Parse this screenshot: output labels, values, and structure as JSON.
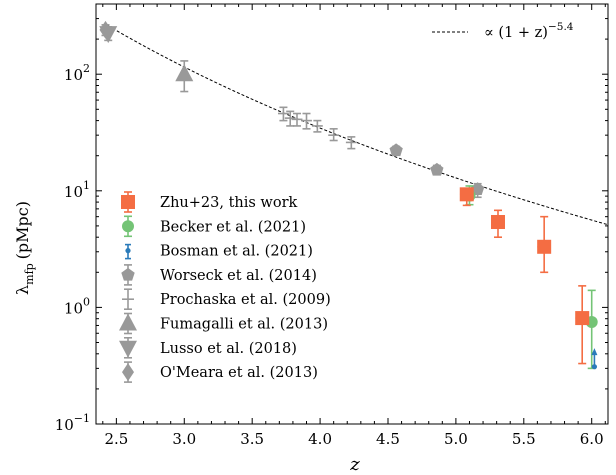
{
  "chart_data": {
    "type": "scatter",
    "xlabel": "z",
    "ylabel_main": "λ",
    "ylabel_sub": "mfp",
    "ylabel_unit": "(pMpc)",
    "xlim": [
      2.35,
      6.12
    ],
    "ylim": [
      0.1,
      400
    ],
    "yscale": "log",
    "x_ticks": [
      2.5,
      3.0,
      3.5,
      4.0,
      4.5,
      5.0,
      5.5,
      6.0
    ],
    "x_tick_labels": [
      "2.5",
      "3.0",
      "3.5",
      "4.0",
      "4.5",
      "5.0",
      "5.5",
      "6.0"
    ],
    "y_ticks": [
      {
        "value": 0.1,
        "base": "10",
        "exp": "−1"
      },
      {
        "value": 1,
        "base": "10",
        "exp": "0"
      },
      {
        "value": 10,
        "base": "10",
        "exp": "1"
      },
      {
        "value": 100,
        "base": "10",
        "exp": "2"
      }
    ],
    "grid": false,
    "legend_position": "lower-left",
    "fit_line": {
      "label": "∝ (1 + z)",
      "label_exp": "−5.4",
      "exponent": -5.4,
      "norm_z": 2.44,
      "norm_value": 260,
      "x_start": 2.44,
      "x_end": 6.12,
      "color": "#000000"
    },
    "series": [
      {
        "name": "Zhu+23, this work",
        "marker": "square",
        "color": "#f46d43",
        "points": [
          {
            "x": 5.08,
            "y": 9.33,
            "yerr_low": 7.5,
            "yerr_high": 10.5,
            "xerr": 0.05
          },
          {
            "x": 5.31,
            "y": 5.4,
            "yerr_low": 4.0,
            "yerr_high": 6.8,
            "xerr": 0.05
          },
          {
            "x": 5.65,
            "y": 3.31,
            "yerr_low": 2.0,
            "yerr_high": 6.0,
            "xerr": 0.05
          },
          {
            "x": 5.93,
            "y": 0.81,
            "yerr_low": 0.33,
            "yerr_high": 1.53,
            "xerr": 0.05
          }
        ]
      },
      {
        "name": "Becker et al. (2021)",
        "marker": "circle",
        "color": "#74c476",
        "points": [
          {
            "x": 5.1,
            "y": 9.09,
            "yerr_low": 7.6,
            "yerr_high": 11.0,
            "xerr": 0
          },
          {
            "x": 6.0,
            "y": 0.75,
            "yerr_low": 0.3,
            "yerr_high": 1.4,
            "xerr": 0
          }
        ]
      },
      {
        "name": "Bosman et al. (2021)",
        "marker": "small-circle",
        "color": "#2b7bba",
        "points": [
          {
            "x": 6.02,
            "y": 0.31,
            "yerr_low": 0.31,
            "yerr_high": 0.43,
            "xerr": 0,
            "lower_limit": true
          }
        ]
      },
      {
        "name": "Worseck et al. (2014)",
        "marker": "pentagon",
        "color": "#999999",
        "points": [
          {
            "x": 4.56,
            "y": 22.2,
            "yerr_low": 20.5,
            "yerr_high": 24.0,
            "xerr": 0
          },
          {
            "x": 4.86,
            "y": 15.1,
            "yerr_low": 13.8,
            "yerr_high": 16.5,
            "xerr": 0
          },
          {
            "x": 5.16,
            "y": 10.3,
            "yerr_low": 8.8,
            "yerr_high": 11.5,
            "xerr": 0
          }
        ]
      },
      {
        "name": "Prochaska et al. (2009)",
        "marker": "plus",
        "color": "#999999",
        "points": [
          {
            "x": 3.73,
            "y": 46,
            "yerr_low": 40,
            "yerr_high": 52,
            "xerr": 0.04
          },
          {
            "x": 3.78,
            "y": 42,
            "yerr_low": 36,
            "yerr_high": 48,
            "xerr": 0.04
          },
          {
            "x": 3.83,
            "y": 41,
            "yerr_low": 36,
            "yerr_high": 46,
            "xerr": 0.04
          },
          {
            "x": 3.9,
            "y": 40,
            "yerr_low": 34,
            "yerr_high": 46,
            "xerr": 0.04
          },
          {
            "x": 3.98,
            "y": 36,
            "yerr_low": 32,
            "yerr_high": 40,
            "xerr": 0.04
          },
          {
            "x": 4.1,
            "y": 30,
            "yerr_low": 27,
            "yerr_high": 34,
            "xerr": 0.04
          },
          {
            "x": 4.23,
            "y": 26,
            "yerr_low": 23,
            "yerr_high": 29,
            "xerr": 0.04
          }
        ]
      },
      {
        "name": "Fumagalli et al. (2013)",
        "marker": "triangle-up",
        "color": "#999999",
        "points": [
          {
            "x": 3.0,
            "y": 100,
            "yerr_low": 71,
            "yerr_high": 130,
            "xerr": 0
          }
        ]
      },
      {
        "name": "Lusso et al. (2018)",
        "marker": "triangle-down",
        "color": "#999999",
        "points": [
          {
            "x": 2.44,
            "y": 225,
            "yerr_low": 195,
            "yerr_high": 255,
            "xerr": 0
          }
        ]
      },
      {
        "name": "O'Meara et al. (2013)",
        "marker": "diamond",
        "color": "#999999",
        "points": [
          {
            "x": 2.42,
            "y": 240,
            "yerr_low": 215,
            "yerr_high": 265,
            "xerr": 0
          }
        ]
      }
    ]
  }
}
